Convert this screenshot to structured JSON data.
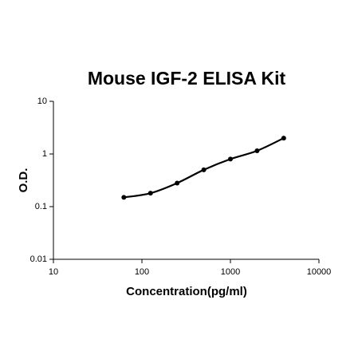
{
  "chart_data": {
    "type": "scatter",
    "title": "Mouse IGF-2 ELISA Kit",
    "x_label": "Concentration(pg/ml)",
    "y_label": "O.D.",
    "x": [
      62.5,
      125,
      250,
      500,
      1000,
      2000,
      4000
    ],
    "series": [
      {
        "color": "#000000",
        "values": [
          0.15,
          0.18,
          0.28,
          0.5,
          0.8,
          1.15,
          2.0
        ]
      }
    ],
    "fit_line": true,
    "x_log": true,
    "y_log": true,
    "xlim": [
      10,
      10000
    ],
    "xticks": [
      10,
      100,
      1000,
      10000
    ],
    "ylim": [
      0.01,
      10
    ],
    "yticks": [
      0.01,
      0.1,
      1,
      10
    ]
  }
}
